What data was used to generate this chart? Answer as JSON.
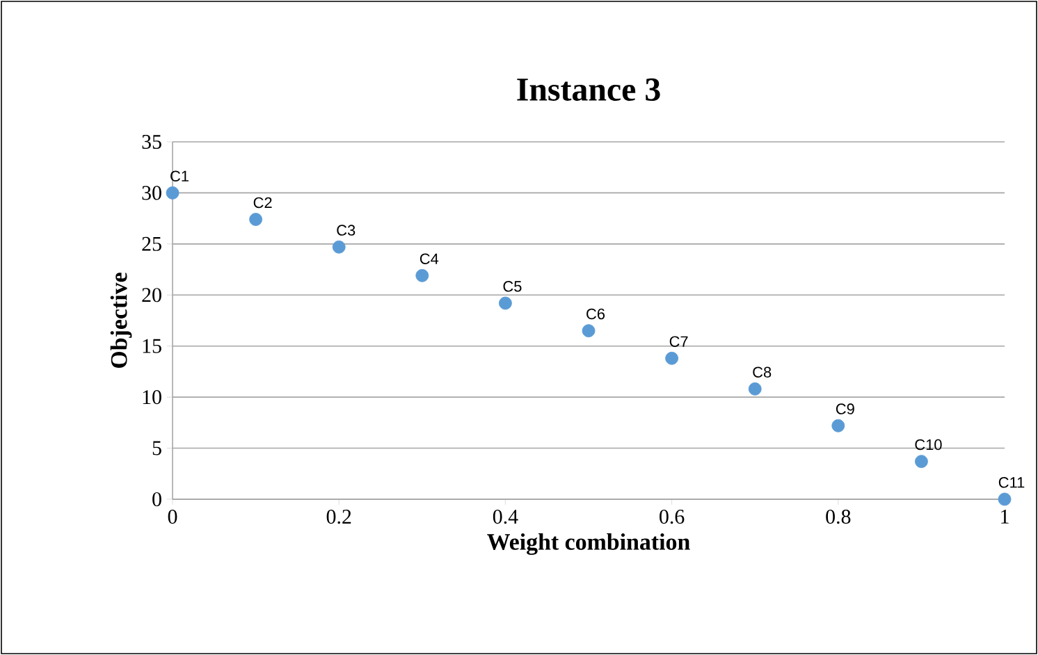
{
  "chart_data": {
    "type": "scatter",
    "title": "Instance 3",
    "xlabel": "Weight combination",
    "ylabel": "Objective",
    "x": [
      0,
      0.1,
      0.2,
      0.3,
      0.4,
      0.5,
      0.6,
      0.7,
      0.8,
      0.9,
      1
    ],
    "values": [
      30,
      27.4,
      24.7,
      21.9,
      19.2,
      16.5,
      13.8,
      10.8,
      7.2,
      3.7,
      0
    ],
    "color": "#5b9bd5",
    "marker": "circle",
    "grid": "y",
    "xlim": [
      0,
      1
    ],
    "xticks": [
      0,
      0.2,
      0.4,
      0.6,
      0.8,
      1
    ],
    "ylim": [
      0,
      35
    ],
    "yticks": [
      0,
      5,
      10,
      15,
      20,
      25,
      30,
      35
    ],
    "annotations": [
      {
        "text": "C1",
        "x": 0,
        "y": 30
      },
      {
        "text": "C2",
        "x": 0.1,
        "y": 27.4
      },
      {
        "text": "C3",
        "x": 0.2,
        "y": 24.7
      },
      {
        "text": "C4",
        "x": 0.3,
        "y": 21.9
      },
      {
        "text": "C5",
        "x": 0.4,
        "y": 19.2
      },
      {
        "text": "C6",
        "x": 0.5,
        "y": 16.5
      },
      {
        "text": "C7",
        "x": 0.6,
        "y": 13.8
      },
      {
        "text": "C8",
        "x": 0.7,
        "y": 10.8
      },
      {
        "text": "C9",
        "x": 0.8,
        "y": 7.2
      },
      {
        "text": "C10",
        "x": 0.9,
        "y": 3.7
      },
      {
        "text": "C11",
        "x": 1,
        "y": 0
      }
    ]
  }
}
